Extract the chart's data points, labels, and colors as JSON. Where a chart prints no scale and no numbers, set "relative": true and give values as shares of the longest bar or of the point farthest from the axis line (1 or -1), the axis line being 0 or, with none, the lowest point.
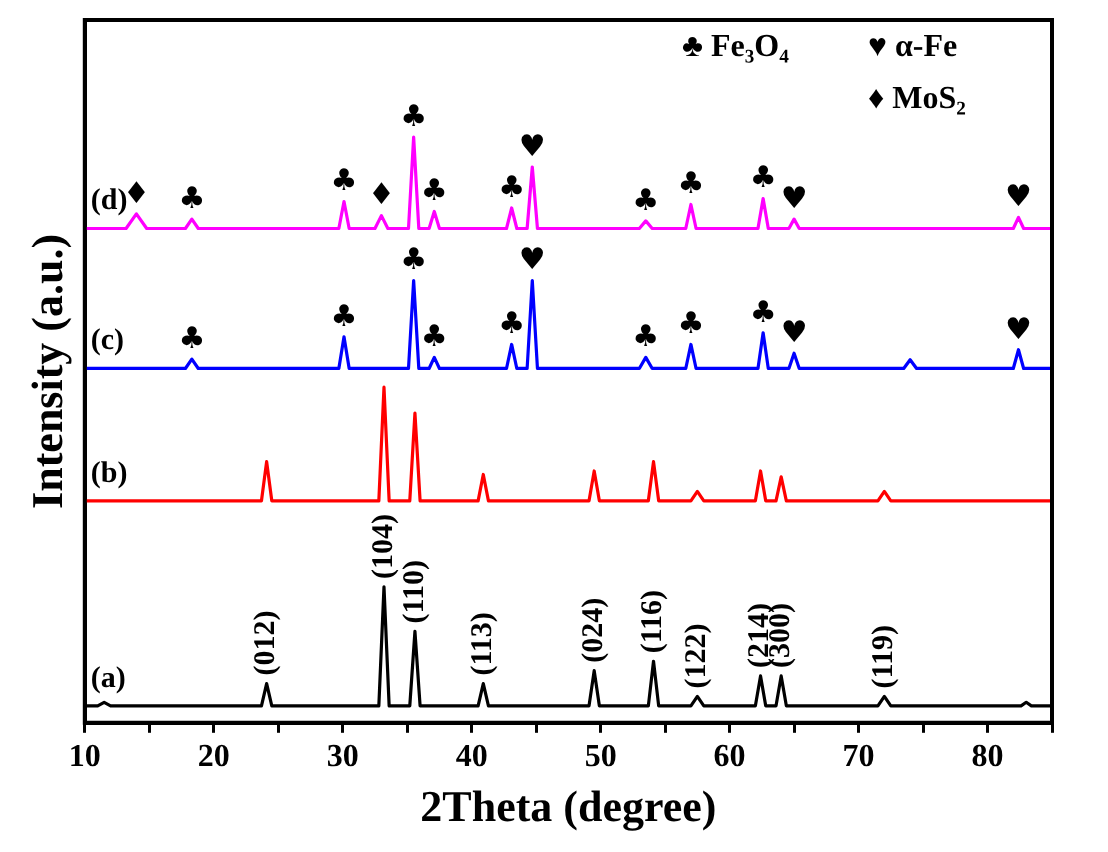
{
  "chart_data": {
    "type": "line",
    "relative": true,
    "xlabel": "2Theta (degree)",
    "ylabel": "Intensity (a.u.)",
    "xlim": [
      10,
      85
    ],
    "xticks": [
      10,
      {
        "value": 15,
        "label": null
      },
      20,
      {
        "value": 25,
        "label": null
      },
      30,
      {
        "value": 35,
        "label": null
      },
      40,
      {
        "value": 45,
        "label": null
      },
      50,
      {
        "value": 55,
        "label": null
      },
      60,
      {
        "value": 65,
        "label": null
      },
      70,
      {
        "value": 75,
        "label": null
      },
      80,
      {
        "value": 85,
        "label": null
      }
    ],
    "grid": false,
    "legend": false,
    "marker": "none",
    "line_style": "solid",
    "series": [
      {
        "name": "(a)",
        "color": "#000000",
        "x": [
          10,
          11,
          11.5,
          12,
          23.7,
          24.1,
          24.5,
          32.8,
          33.2,
          33.6,
          35.2,
          35.6,
          36.0,
          40.5,
          40.9,
          41.3,
          49.1,
          49.5,
          49.9,
          53.7,
          54.1,
          54.5,
          57.0,
          57.5,
          58.0,
          62.0,
          62.4,
          62.8,
          63.6,
          64.0,
          64.4,
          71.5,
          72.0,
          72.5,
          82.6,
          83.0,
          83.4,
          85
        ],
        "values": [
          0.029,
          0.029,
          0.035,
          0.029,
          0.029,
          0.067,
          0.029,
          0.029,
          0.232,
          0.029,
          0.029,
          0.156,
          0.029,
          0.029,
          0.067,
          0.029,
          0.029,
          0.089,
          0.029,
          0.029,
          0.105,
          0.029,
          0.029,
          0.045,
          0.029,
          0.029,
          0.08,
          0.029,
          0.029,
          0.08,
          0.029,
          0.029,
          0.045,
          0.029,
          0.029,
          0.035,
          0.029,
          0.029
        ]
      },
      {
        "name": "(b)",
        "color": "#ff0000",
        "x": [
          10,
          23.7,
          24.1,
          24.5,
          32.8,
          33.2,
          33.6,
          35.2,
          35.6,
          36.0,
          40.5,
          40.9,
          41.3,
          49.1,
          49.5,
          49.9,
          53.7,
          54.1,
          54.5,
          57.0,
          57.5,
          58.0,
          62.0,
          62.4,
          62.8,
          63.6,
          64.0,
          64.4,
          71.5,
          72.0,
          72.5,
          85
        ],
        "values": [
          0.379,
          0.379,
          0.446,
          0.379,
          0.379,
          0.573,
          0.379,
          0.379,
          0.529,
          0.379,
          0.379,
          0.424,
          0.379,
          0.379,
          0.43,
          0.379,
          0.379,
          0.446,
          0.379,
          0.379,
          0.395,
          0.379,
          0.379,
          0.43,
          0.379,
          0.379,
          0.42,
          0.379,
          0.379,
          0.395,
          0.379,
          0.379
        ]
      },
      {
        "name": "(c)",
        "color": "#0000ff",
        "x": [
          10,
          17.8,
          18.3,
          18.8,
          29.7,
          30.1,
          30.5,
          35.1,
          35.5,
          35.9,
          36.7,
          37.1,
          37.5,
          42.7,
          43.1,
          43.5,
          44.3,
          44.7,
          45.1,
          53.0,
          53.5,
          54.0,
          56.6,
          57.0,
          57.4,
          62.2,
          62.6,
          63.0,
          64.6,
          65.0,
          65.4,
          73.5,
          74.0,
          74.5,
          82.0,
          82.4,
          82.8,
          85
        ],
        "values": [
          0.605,
          0.605,
          0.621,
          0.605,
          0.605,
          0.659,
          0.605,
          0.605,
          0.755,
          0.605,
          0.605,
          0.624,
          0.605,
          0.605,
          0.646,
          0.605,
          0.605,
          0.755,
          0.605,
          0.605,
          0.624,
          0.605,
          0.605,
          0.646,
          0.605,
          0.605,
          0.666,
          0.605,
          0.605,
          0.631,
          0.605,
          0.605,
          0.62,
          0.605,
          0.605,
          0.637,
          0.605,
          0.605
        ]
      },
      {
        "name": "(d)",
        "color": "#ff00ff",
        "x": [
          10,
          13.2,
          14.0,
          14.8,
          17.8,
          18.3,
          18.8,
          29.7,
          30.1,
          30.5,
          32.5,
          33.0,
          33.5,
          35.1,
          35.5,
          35.9,
          36.7,
          37.1,
          37.5,
          42.7,
          43.1,
          43.5,
          44.3,
          44.7,
          45.1,
          53.0,
          53.5,
          54.0,
          56.6,
          57.0,
          57.4,
          62.2,
          62.6,
          63.0,
          64.6,
          65.0,
          65.4,
          82.0,
          82.4,
          82.8,
          85
        ],
        "values": [
          0.844,
          0.844,
          0.869,
          0.844,
          0.844,
          0.86,
          0.844,
          0.844,
          0.89,
          0.844,
          0.844,
          0.866,
          0.844,
          0.844,
          1.0,
          0.844,
          0.844,
          0.873,
          0.844,
          0.844,
          0.879,
          0.844,
          0.844,
          0.949,
          0.844,
          0.844,
          0.857,
          0.844,
          0.844,
          0.885,
          0.844,
          0.844,
          0.895,
          0.844,
          0.844,
          0.86,
          0.844,
          0.844,
          0.863,
          0.844,
          0.844
        ]
      }
    ],
    "annotations": [
      "♣ Fe₃O₄",
      "♥ α-Fe",
      "♦ MoS₂",
      {
        "text": "♦",
        "x": 14.0,
        "y": 0.869
      },
      {
        "text": "♣",
        "x": 18.3,
        "y": 0.86
      },
      {
        "text": "♣",
        "x": 30.1,
        "y": 0.89
      },
      {
        "text": "♦",
        "x": 33.0,
        "y": 0.866
      },
      {
        "text": "♣",
        "x": 35.5,
        "y": 1.0
      },
      {
        "text": "♣",
        "x": 37.1,
        "y": 0.873
      },
      {
        "text": "♣",
        "x": 43.1,
        "y": 0.879
      },
      {
        "text": "♥",
        "x": 44.7,
        "y": 0.949
      },
      {
        "text": "♣",
        "x": 53.5,
        "y": 0.857
      },
      {
        "text": "♣",
        "x": 57.0,
        "y": 0.885
      },
      {
        "text": "♣",
        "x": 62.6,
        "y": 0.895
      },
      {
        "text": "♥",
        "x": 65.0,
        "y": 0.86
      },
      {
        "text": "♥",
        "x": 82.4,
        "y": 0.863
      },
      {
        "text": "♣",
        "x": 18.3,
        "y": 0.621
      },
      {
        "text": "♣",
        "x": 30.1,
        "y": 0.659
      },
      {
        "text": "♣",
        "x": 35.5,
        "y": 0.755
      },
      {
        "text": "♣",
        "x": 37.1,
        "y": 0.624
      },
      {
        "text": "♣",
        "x": 43.1,
        "y": 0.646
      },
      {
        "text": "♥",
        "x": 44.7,
        "y": 0.755
      },
      {
        "text": "♣",
        "x": 53.5,
        "y": 0.624
      },
      {
        "text": "♣",
        "x": 57.0,
        "y": 0.646
      },
      {
        "text": "♣",
        "x": 62.6,
        "y": 0.666
      },
      {
        "text": "♥",
        "x": 65.0,
        "y": 0.631
      },
      {
        "text": "♥",
        "x": 82.4,
        "y": 0.637
      },
      {
        "text": "(012)",
        "x": 24.1,
        "y": 0.067
      },
      {
        "text": "(104)",
        "x": 33.2,
        "y": 0.232
      },
      {
        "text": "(110)",
        "x": 35.6,
        "y": 0.156
      },
      {
        "text": "(113)",
        "x": 40.9,
        "y": 0.067
      },
      {
        "text": "(024)",
        "x": 49.5,
        "y": 0.089
      },
      {
        "text": "(116)",
        "x": 54.1,
        "y": 0.105
      },
      {
        "text": "(122)",
        "x": 57.5,
        "y": 0.045
      },
      {
        "text": "(214)",
        "x": 62.4,
        "y": 0.08
      },
      {
        "text": "(300)",
        "x": 64.0,
        "y": 0.08
      },
      {
        "text": "(119)",
        "x": 72.0,
        "y": 0.045
      }
    ]
  }
}
